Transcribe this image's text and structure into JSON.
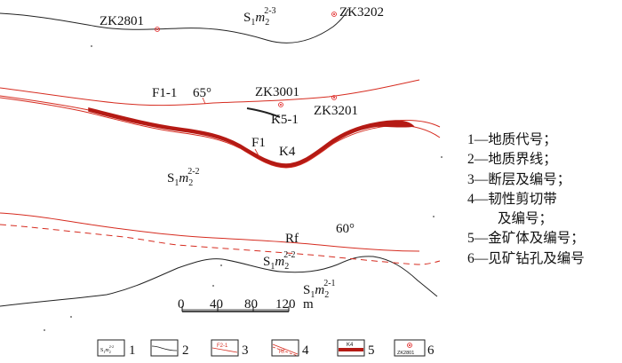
{
  "labels": {
    "zk2801": "ZK2801",
    "zk3202": "ZK3202",
    "zk3001": "ZK3001",
    "zk3201": "ZK3201",
    "fault_f11": "F1-1",
    "fault_f11_dip": "65°",
    "fault_f1": "F1",
    "ore_k51": "K5-1",
    "ore_k4": "K4",
    "rf": "Rf",
    "rf_dip": "60°",
    "strata_top": "S1m2 2-3",
    "strata_mid": "S1m2 2-2",
    "strata_low": "S1m2 2-2",
    "strata_bottom": "S1m2 2-1"
  },
  "strata_parts": {
    "S": "S",
    "s1": "1",
    "m": "m",
    "s2": "2",
    "sup_23": "2-3",
    "sup_22": "2-2",
    "sup_21": "2-1"
  },
  "scale_bar": {
    "ticks": [
      "0",
      "40",
      "80",
      "120"
    ],
    "unit": "m"
  },
  "legend_right": [
    "1—地质代号；",
    "2—地质界线；",
    "3—断层及编号；",
    "4—韧性剪切带",
    "及编号；",
    "5—金矿体及编号；",
    "6—见矿钻孔及编号"
  ],
  "legend_bottom": {
    "box1_text": "S1m2 2-2",
    "box3_text": "F2-1",
    "box4_text": "Rf",
    "box5_text": "K4",
    "box6_text": "ZK2801",
    "numbers": [
      "1",
      "2",
      "3",
      "4",
      "5",
      "6"
    ]
  },
  "colors": {
    "geologic_boundary": "#222222",
    "fault": "#d62c20",
    "orebody": "#b51a14",
    "drillhole": "#e02020"
  }
}
